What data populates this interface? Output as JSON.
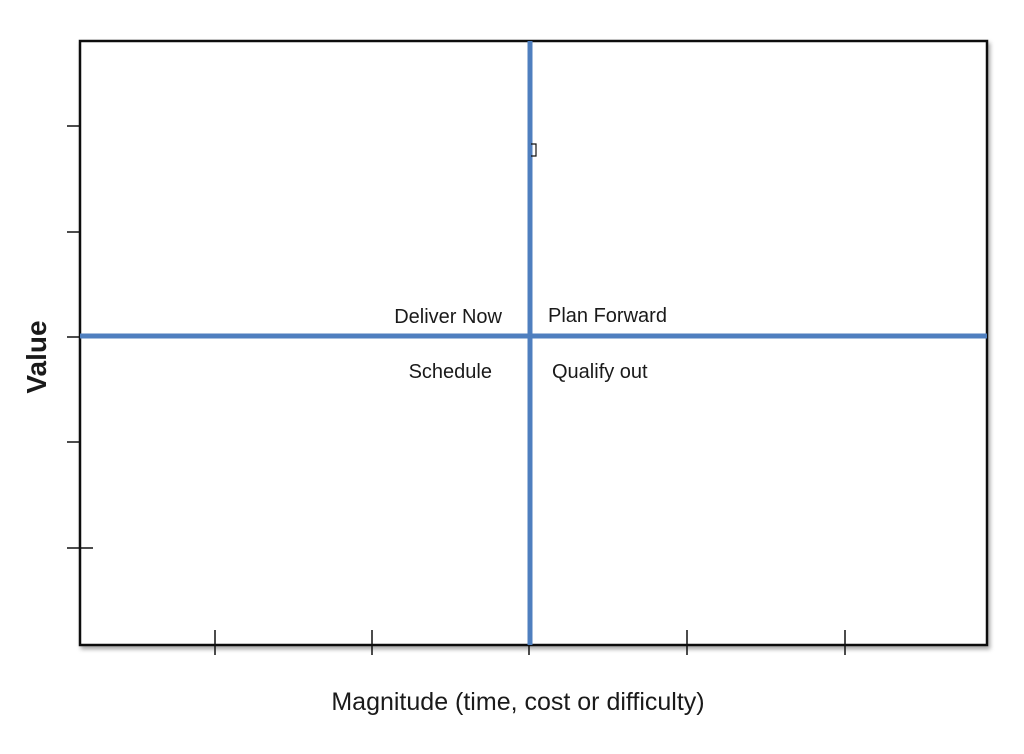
{
  "diagram": {
    "x_axis_label": "Magnitude (time, cost or difficulty)",
    "y_axis_label": "Value",
    "quadrants": {
      "top_left": "Deliver Now",
      "top_right": "Plan Forward",
      "bottom_left": "Schedule",
      "bottom_right": "Qualify out"
    },
    "colors": {
      "frame": "#111111",
      "divider": "#4f7fbf",
      "text": "#1a1a1a"
    }
  }
}
